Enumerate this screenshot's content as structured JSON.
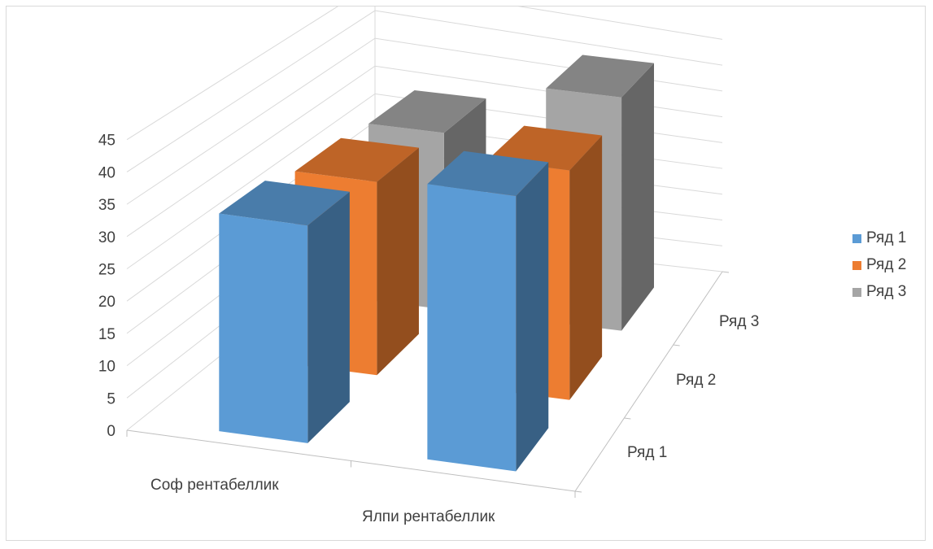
{
  "chart_data": {
    "type": "bar",
    "variant": "3d-clustered-column",
    "categories": [
      "Соф рентабеллик",
      "Ялпи рентабеллик"
    ],
    "series": [
      {
        "name": "Ряд 1",
        "values": [
          34,
          43
        ],
        "color": "#5b9bd5"
      },
      {
        "name": "Ряд 2",
        "values": [
          32,
          38
        ],
        "color": "#ed7d31"
      },
      {
        "name": "Ряд 3",
        "values": [
          31,
          41
        ],
        "color": "#a5a5a5"
      }
    ],
    "depth_labels": [
      "Ряд 1",
      "Ряд 2",
      "Ряд 3"
    ],
    "y_ticks": [
      "0",
      "5",
      "10",
      "15",
      "20",
      "25",
      "30",
      "35",
      "40",
      "45"
    ],
    "ylim": [
      0,
      45
    ],
    "grid": true,
    "legend_position": "right"
  }
}
